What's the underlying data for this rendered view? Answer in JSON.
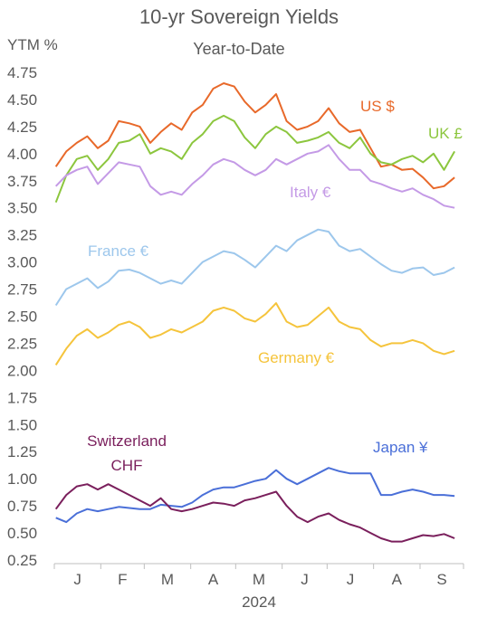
{
  "chart_data": {
    "type": "line",
    "title": "10-yr Sovereign Yields",
    "subtitle": "Year-to-Date",
    "ylabel": "YTM %",
    "xlabel": "2024",
    "ylim": [
      0.25,
      4.75
    ],
    "yticks": [
      "4.75",
      "4.50",
      "4.25",
      "4.00",
      "3.75",
      "3.50",
      "3.25",
      "3.00",
      "2.75",
      "2.50",
      "2.25",
      "2.00",
      "1.75",
      "1.50",
      "1.25",
      "1.00",
      "0.75",
      "0.50",
      "0.25"
    ],
    "month_labels": [
      "J",
      "F",
      "M",
      "A",
      "M",
      "J",
      "J",
      "A",
      "S"
    ],
    "x": [
      "2024-01-02",
      "2024-01-09",
      "2024-01-16",
      "2024-01-23",
      "2024-01-30",
      "2024-02-06",
      "2024-02-13",
      "2024-02-20",
      "2024-02-27",
      "2024-03-05",
      "2024-03-12",
      "2024-03-19",
      "2024-03-26",
      "2024-04-02",
      "2024-04-09",
      "2024-04-16",
      "2024-04-23",
      "2024-04-30",
      "2024-05-07",
      "2024-05-14",
      "2024-05-21",
      "2024-05-28",
      "2024-06-04",
      "2024-06-11",
      "2024-06-18",
      "2024-06-25",
      "2024-07-02",
      "2024-07-09",
      "2024-07-16",
      "2024-07-23",
      "2024-07-30",
      "2024-08-06",
      "2024-08-13",
      "2024-08-20",
      "2024-08-27",
      "2024-09-03",
      "2024-09-10",
      "2024-09-17",
      "2024-09-24"
    ],
    "series": [
      {
        "name": "US $",
        "color": "#e8692a",
        "values": [
          3.88,
          4.02,
          4.1,
          4.16,
          4.05,
          4.12,
          4.3,
          4.28,
          4.25,
          4.1,
          4.2,
          4.28,
          4.22,
          4.38,
          4.45,
          4.6,
          4.65,
          4.62,
          4.48,
          4.38,
          4.45,
          4.55,
          4.3,
          4.22,
          4.25,
          4.3,
          4.42,
          4.28,
          4.2,
          4.22,
          4.05,
          3.88,
          3.9,
          3.85,
          3.86,
          3.78,
          3.68,
          3.7,
          3.78
        ]
      },
      {
        "name": "UK £",
        "color": "#8cc63e",
        "values": [
          3.55,
          3.8,
          3.95,
          3.98,
          3.85,
          3.95,
          4.1,
          4.12,
          4.18,
          4.0,
          4.05,
          4.02,
          3.95,
          4.1,
          4.18,
          4.3,
          4.35,
          4.3,
          4.15,
          4.05,
          4.18,
          4.25,
          4.2,
          4.1,
          4.12,
          4.15,
          4.2,
          4.1,
          4.05,
          4.15,
          4.0,
          3.92,
          3.9,
          3.95,
          3.98,
          3.92,
          4.0,
          3.85,
          4.02
        ]
      },
      {
        "name": "Italy €",
        "color": "#c49ae6",
        "values": [
          3.7,
          3.8,
          3.85,
          3.88,
          3.72,
          3.82,
          3.92,
          3.9,
          3.88,
          3.7,
          3.62,
          3.65,
          3.62,
          3.72,
          3.8,
          3.9,
          3.95,
          3.92,
          3.85,
          3.8,
          3.85,
          3.95,
          3.9,
          3.95,
          4.0,
          4.02,
          4.08,
          3.95,
          3.85,
          3.85,
          3.75,
          3.72,
          3.68,
          3.65,
          3.68,
          3.62,
          3.58,
          3.52,
          3.5
        ]
      },
      {
        "name": "France €",
        "color": "#9dc7ec",
        "values": [
          2.6,
          2.75,
          2.8,
          2.85,
          2.76,
          2.82,
          2.92,
          2.93,
          2.9,
          2.85,
          2.8,
          2.83,
          2.8,
          2.9,
          3.0,
          3.05,
          3.1,
          3.08,
          3.02,
          2.95,
          3.05,
          3.15,
          3.1,
          3.2,
          3.25,
          3.3,
          3.28,
          3.15,
          3.1,
          3.12,
          3.05,
          2.98,
          2.92,
          2.9,
          2.94,
          2.95,
          2.88,
          2.9,
          2.95
        ]
      },
      {
        "name": "Germany €",
        "color": "#f5c43c",
        "values": [
          2.05,
          2.2,
          2.32,
          2.38,
          2.3,
          2.35,
          2.42,
          2.45,
          2.4,
          2.3,
          2.33,
          2.38,
          2.35,
          2.4,
          2.45,
          2.55,
          2.58,
          2.55,
          2.48,
          2.45,
          2.52,
          2.62,
          2.45,
          2.4,
          2.42,
          2.5,
          2.58,
          2.45,
          2.4,
          2.38,
          2.28,
          2.22,
          2.25,
          2.25,
          2.28,
          2.25,
          2.18,
          2.15,
          2.18
        ]
      },
      {
        "name": "Japan ¥",
        "color": "#4a6fd8",
        "values": [
          0.64,
          0.6,
          0.68,
          0.72,
          0.7,
          0.72,
          0.74,
          0.73,
          0.72,
          0.72,
          0.76,
          0.75,
          0.74,
          0.78,
          0.85,
          0.9,
          0.92,
          0.92,
          0.95,
          0.98,
          1.0,
          1.08,
          1.0,
          0.95,
          1.0,
          1.05,
          1.1,
          1.07,
          1.05,
          1.05,
          1.05,
          0.85,
          0.85,
          0.88,
          0.9,
          0.88,
          0.85,
          0.85,
          0.84
        ]
      },
      {
        "name": "Switzerland CHF",
        "color": "#7a1f5c",
        "values": [
          0.72,
          0.85,
          0.93,
          0.95,
          0.9,
          0.95,
          0.9,
          0.85,
          0.8,
          0.75,
          0.82,
          0.72,
          0.7,
          0.72,
          0.75,
          0.78,
          0.77,
          0.75,
          0.8,
          0.82,
          0.85,
          0.88,
          0.75,
          0.65,
          0.6,
          0.65,
          0.68,
          0.62,
          0.58,
          0.55,
          0.5,
          0.45,
          0.42,
          0.42,
          0.45,
          0.48,
          0.47,
          0.49,
          0.45
        ]
      }
    ],
    "grid": false,
    "legend": "inline labels"
  }
}
